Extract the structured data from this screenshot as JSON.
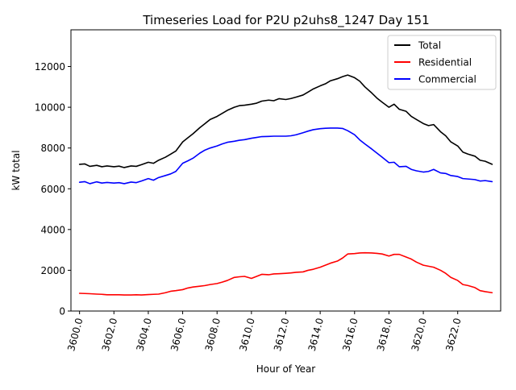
{
  "chart_data": {
    "type": "line",
    "title": "Timeseries Load for P2U p2uhs8_1247  Day 151",
    "xlabel": "Hour of Year",
    "ylabel": "kW total",
    "xlim": [
      3599.5,
      3624.5
    ],
    "ylim": [
      0,
      13800
    ],
    "grid": false,
    "legend_position": "top-right",
    "x_ticks": [
      3600,
      3602,
      3604,
      3606,
      3608,
      3610,
      3612,
      3614,
      3616,
      3618,
      3620,
      3622
    ],
    "x_tick_labels": [
      "3600.0",
      "3602.0",
      "3604.0",
      "3606.0",
      "3608.0",
      "3610.0",
      "3612.0",
      "3614.0",
      "3616.0",
      "3618.0",
      "3620.0",
      "3622.0"
    ],
    "y_ticks": [
      0,
      2000,
      4000,
      6000,
      8000,
      10000,
      12000
    ],
    "y_tick_labels": [
      "0",
      "2000",
      "4000",
      "6000",
      "8000",
      "10000",
      "12000"
    ],
    "series": [
      {
        "name": "Total",
        "color": "#000000",
        "points": [
          [
            3600,
            7200
          ],
          [
            3600.3,
            7220
          ],
          [
            3600.6,
            7100
          ],
          [
            3601,
            7150
          ],
          [
            3601.3,
            7080
          ],
          [
            3601.6,
            7120
          ],
          [
            3602,
            7080
          ],
          [
            3602.3,
            7110
          ],
          [
            3602.6,
            7040
          ],
          [
            3603,
            7120
          ],
          [
            3603.3,
            7100
          ],
          [
            3603.6,
            7180
          ],
          [
            3604,
            7300
          ],
          [
            3604.3,
            7250
          ],
          [
            3604.6,
            7400
          ],
          [
            3605,
            7550
          ],
          [
            3605.3,
            7700
          ],
          [
            3605.6,
            7850
          ],
          [
            3606,
            8300
          ],
          [
            3606.3,
            8500
          ],
          [
            3606.6,
            8700
          ],
          [
            3607,
            9000
          ],
          [
            3607.3,
            9200
          ],
          [
            3607.6,
            9400
          ],
          [
            3608,
            9550
          ],
          [
            3608.3,
            9700
          ],
          [
            3608.6,
            9850
          ],
          [
            3609,
            10000
          ],
          [
            3609.3,
            10080
          ],
          [
            3609.6,
            10100
          ],
          [
            3610,
            10150
          ],
          [
            3610.3,
            10200
          ],
          [
            3610.6,
            10300
          ],
          [
            3611,
            10350
          ],
          [
            3611.3,
            10320
          ],
          [
            3611.6,
            10420
          ],
          [
            3612,
            10380
          ],
          [
            3612.3,
            10430
          ],
          [
            3612.6,
            10500
          ],
          [
            3613,
            10600
          ],
          [
            3613.3,
            10750
          ],
          [
            3613.6,
            10900
          ],
          [
            3614,
            11050
          ],
          [
            3614.3,
            11150
          ],
          [
            3614.6,
            11300
          ],
          [
            3615,
            11400
          ],
          [
            3615.3,
            11500
          ],
          [
            3615.6,
            11580
          ],
          [
            3616,
            11450
          ],
          [
            3616.3,
            11280
          ],
          [
            3616.6,
            11000
          ],
          [
            3617,
            10700
          ],
          [
            3617.3,
            10450
          ],
          [
            3617.6,
            10250
          ],
          [
            3618,
            10000
          ],
          [
            3618.3,
            10150
          ],
          [
            3618.6,
            9900
          ],
          [
            3619,
            9800
          ],
          [
            3619.3,
            9550
          ],
          [
            3619.6,
            9400
          ],
          [
            3620,
            9200
          ],
          [
            3620.3,
            9100
          ],
          [
            3620.6,
            9150
          ],
          [
            3621,
            8800
          ],
          [
            3621.3,
            8600
          ],
          [
            3621.6,
            8300
          ],
          [
            3622,
            8100
          ],
          [
            3622.3,
            7800
          ],
          [
            3622.6,
            7700
          ],
          [
            3623,
            7600
          ],
          [
            3623.3,
            7400
          ],
          [
            3623.6,
            7350
          ],
          [
            3624,
            7200
          ]
        ]
      },
      {
        "name": "Residential",
        "color": "#ff0000",
        "points": [
          [
            3600,
            870
          ],
          [
            3600.3,
            860
          ],
          [
            3600.6,
            850
          ],
          [
            3601,
            830
          ],
          [
            3601.3,
            820
          ],
          [
            3601.6,
            800
          ],
          [
            3602,
            800
          ],
          [
            3602.3,
            800
          ],
          [
            3602.6,
            790
          ],
          [
            3603,
            790
          ],
          [
            3603.3,
            800
          ],
          [
            3603.6,
            790
          ],
          [
            3604,
            810
          ],
          [
            3604.3,
            820
          ],
          [
            3604.6,
            830
          ],
          [
            3605,
            900
          ],
          [
            3605.3,
            970
          ],
          [
            3605.6,
            1000
          ],
          [
            3606,
            1050
          ],
          [
            3606.3,
            1130
          ],
          [
            3606.6,
            1180
          ],
          [
            3607,
            1220
          ],
          [
            3607.3,
            1250
          ],
          [
            3607.6,
            1300
          ],
          [
            3608,
            1350
          ],
          [
            3608.3,
            1420
          ],
          [
            3608.6,
            1500
          ],
          [
            3609,
            1650
          ],
          [
            3609.3,
            1680
          ],
          [
            3609.6,
            1700
          ],
          [
            3610,
            1600
          ],
          [
            3610.3,
            1700
          ],
          [
            3610.6,
            1800
          ],
          [
            3611,
            1780
          ],
          [
            3611.3,
            1820
          ],
          [
            3611.6,
            1830
          ],
          [
            3612,
            1850
          ],
          [
            3612.3,
            1870
          ],
          [
            3612.6,
            1900
          ],
          [
            3613,
            1920
          ],
          [
            3613.3,
            2000
          ],
          [
            3613.6,
            2050
          ],
          [
            3614,
            2150
          ],
          [
            3614.3,
            2250
          ],
          [
            3614.6,
            2350
          ],
          [
            3615,
            2450
          ],
          [
            3615.3,
            2600
          ],
          [
            3615.6,
            2800
          ],
          [
            3616,
            2820
          ],
          [
            3616.3,
            2850
          ],
          [
            3616.6,
            2860
          ],
          [
            3617,
            2850
          ],
          [
            3617.3,
            2830
          ],
          [
            3617.6,
            2800
          ],
          [
            3618,
            2700
          ],
          [
            3618.3,
            2780
          ],
          [
            3618.6,
            2780
          ],
          [
            3619,
            2650
          ],
          [
            3619.3,
            2550
          ],
          [
            3619.6,
            2400
          ],
          [
            3620,
            2250
          ],
          [
            3620.3,
            2200
          ],
          [
            3620.6,
            2150
          ],
          [
            3621,
            2000
          ],
          [
            3621.3,
            1850
          ],
          [
            3621.6,
            1650
          ],
          [
            3622,
            1500
          ],
          [
            3622.3,
            1300
          ],
          [
            3622.6,
            1250
          ],
          [
            3623,
            1150
          ],
          [
            3623.3,
            1000
          ],
          [
            3623.6,
            950
          ],
          [
            3624,
            900
          ]
        ]
      },
      {
        "name": "Commercial",
        "color": "#0000ff",
        "points": [
          [
            3600,
            6320
          ],
          [
            3600.3,
            6350
          ],
          [
            3600.6,
            6250
          ],
          [
            3601,
            6340
          ],
          [
            3601.3,
            6280
          ],
          [
            3601.6,
            6310
          ],
          [
            3602,
            6280
          ],
          [
            3602.3,
            6300
          ],
          [
            3602.6,
            6250
          ],
          [
            3603,
            6330
          ],
          [
            3603.3,
            6300
          ],
          [
            3603.6,
            6380
          ],
          [
            3604,
            6500
          ],
          [
            3604.3,
            6420
          ],
          [
            3604.6,
            6550
          ],
          [
            3605,
            6650
          ],
          [
            3605.3,
            6730
          ],
          [
            3605.6,
            6850
          ],
          [
            3606,
            7250
          ],
          [
            3606.3,
            7370
          ],
          [
            3606.6,
            7500
          ],
          [
            3607,
            7750
          ],
          [
            3607.3,
            7900
          ],
          [
            3607.6,
            8000
          ],
          [
            3608,
            8100
          ],
          [
            3608.3,
            8200
          ],
          [
            3608.6,
            8280
          ],
          [
            3609,
            8330
          ],
          [
            3609.3,
            8380
          ],
          [
            3609.6,
            8410
          ],
          [
            3610,
            8480
          ],
          [
            3610.3,
            8520
          ],
          [
            3610.6,
            8560
          ],
          [
            3611,
            8570
          ],
          [
            3611.3,
            8580
          ],
          [
            3611.6,
            8580
          ],
          [
            3612,
            8580
          ],
          [
            3612.3,
            8600
          ],
          [
            3612.6,
            8650
          ],
          [
            3613,
            8750
          ],
          [
            3613.3,
            8830
          ],
          [
            3613.6,
            8900
          ],
          [
            3614,
            8950
          ],
          [
            3614.3,
            8970
          ],
          [
            3614.6,
            8980
          ],
          [
            3615,
            8980
          ],
          [
            3615.3,
            8960
          ],
          [
            3615.6,
            8850
          ],
          [
            3616,
            8650
          ],
          [
            3616.3,
            8400
          ],
          [
            3616.6,
            8200
          ],
          [
            3617,
            7950
          ],
          [
            3617.3,
            7750
          ],
          [
            3617.6,
            7550
          ],
          [
            3618,
            7280
          ],
          [
            3618.3,
            7300
          ],
          [
            3618.6,
            7080
          ],
          [
            3619,
            7100
          ],
          [
            3619.3,
            6950
          ],
          [
            3619.6,
            6880
          ],
          [
            3620,
            6820
          ],
          [
            3620.3,
            6850
          ],
          [
            3620.6,
            6950
          ],
          [
            3621,
            6780
          ],
          [
            3621.3,
            6750
          ],
          [
            3621.6,
            6650
          ],
          [
            3622,
            6600
          ],
          [
            3622.3,
            6500
          ],
          [
            3622.6,
            6480
          ],
          [
            3623,
            6450
          ],
          [
            3623.3,
            6380
          ],
          [
            3623.6,
            6400
          ],
          [
            3624,
            6350
          ]
        ]
      }
    ]
  }
}
